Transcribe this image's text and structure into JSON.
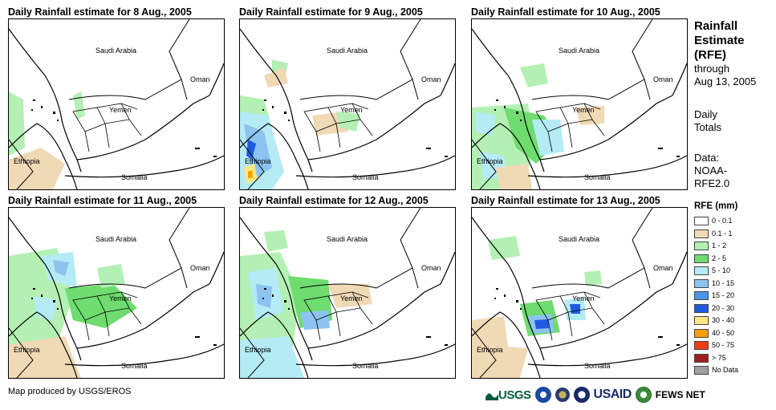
{
  "panels": [
    {
      "title": "Daily Rainfall estimate for 8 Aug., 2005"
    },
    {
      "title": "Daily Rainfall estimate for 9 Aug., 2005"
    },
    {
      "title": "Daily Rainfall estimate for 10 Aug., 2005"
    },
    {
      "title": "Daily Rainfall estimate for 11 Aug., 2005"
    },
    {
      "title": "Daily Rainfall estimate for 12 Aug., 2005"
    },
    {
      "title": "Daily Rainfall estimate for 13 Aug., 2005"
    }
  ],
  "map_labels": {
    "saudi": "Saudi Arabia",
    "oman": "Oman",
    "yemen": "Yemen",
    "ethiopia": "Ethiopia",
    "somalia": "Somalia"
  },
  "side": {
    "heading": [
      "Rainfall",
      "Estimate",
      "(RFE)"
    ],
    "through": [
      "through",
      "Aug 13, 2005"
    ],
    "daily": [
      "Daily",
      "Totals"
    ],
    "data": [
      "Data:",
      "NOAA-",
      "RFE2.0"
    ]
  },
  "legend": {
    "title": "RFE (mm)",
    "items": [
      {
        "label": "0 - 0.1",
        "color": "#ffffff"
      },
      {
        "label": "0.1 - 1",
        "color": "#f0d9b5"
      },
      {
        "label": "1 - 2",
        "color": "#b4f0b4"
      },
      {
        "label": "2 - 5",
        "color": "#6edc6e"
      },
      {
        "label": "5 - 10",
        "color": "#b4ebf5"
      },
      {
        "label": "10 - 15",
        "color": "#8cc3f0"
      },
      {
        "label": "15 - 20",
        "color": "#4b96eb"
      },
      {
        "label": "20 - 30",
        "color": "#1e5ae1"
      },
      {
        "label": "30 - 40",
        "color": "#ffe682"
      },
      {
        "label": "40 - 50",
        "color": "#f5a000"
      },
      {
        "label": "50 - 75",
        "color": "#f03c14"
      },
      {
        "label": "> 75",
        "color": "#a01e1e"
      },
      {
        "label": "No Data",
        "color": "#a0a0a0"
      }
    ]
  },
  "footer": "Map produced by USGS/EROS",
  "logos": {
    "usgs": "USGS",
    "usaid": "USAID",
    "fews": "FEWS NET"
  }
}
